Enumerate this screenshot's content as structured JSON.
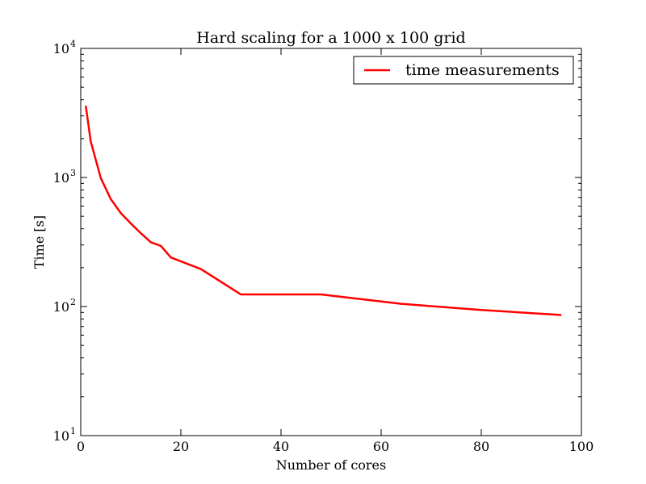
{
  "chart_data": {
    "type": "line",
    "title": "Hard scaling for a 1000 x 100 grid",
    "xlabel": "Number of cores",
    "ylabel": "Time [s]",
    "xlim": [
      0,
      100
    ],
    "ylim": [
      10,
      10000
    ],
    "yscale": "log",
    "grid": false,
    "legend_position": "top-right",
    "x_ticks": [
      {
        "value": 0,
        "label": "0"
      },
      {
        "value": 20,
        "label": "20"
      },
      {
        "value": 40,
        "label": "40"
      },
      {
        "value": 60,
        "label": "60"
      },
      {
        "value": 80,
        "label": "80"
      },
      {
        "value": 100,
        "label": "100"
      }
    ],
    "y_ticks": [
      {
        "value": 10,
        "base": "10",
        "exp": "1"
      },
      {
        "value": 100,
        "base": "10",
        "exp": "2"
      },
      {
        "value": 1000,
        "base": "10",
        "exp": "3"
      },
      {
        "value": 10000,
        "base": "10",
        "exp": "4"
      }
    ],
    "series": [
      {
        "name": "time measurements",
        "color": "#ff0000",
        "x": [
          1,
          2,
          4,
          6,
          8,
          10,
          12,
          14,
          16,
          18,
          24,
          32,
          48,
          64,
          80,
          96
        ],
        "y": [
          3600,
          1900,
          990,
          680,
          530,
          440,
          370,
          315,
          295,
          240,
          195,
          124,
          124,
          105,
          94,
          86
        ]
      }
    ]
  }
}
